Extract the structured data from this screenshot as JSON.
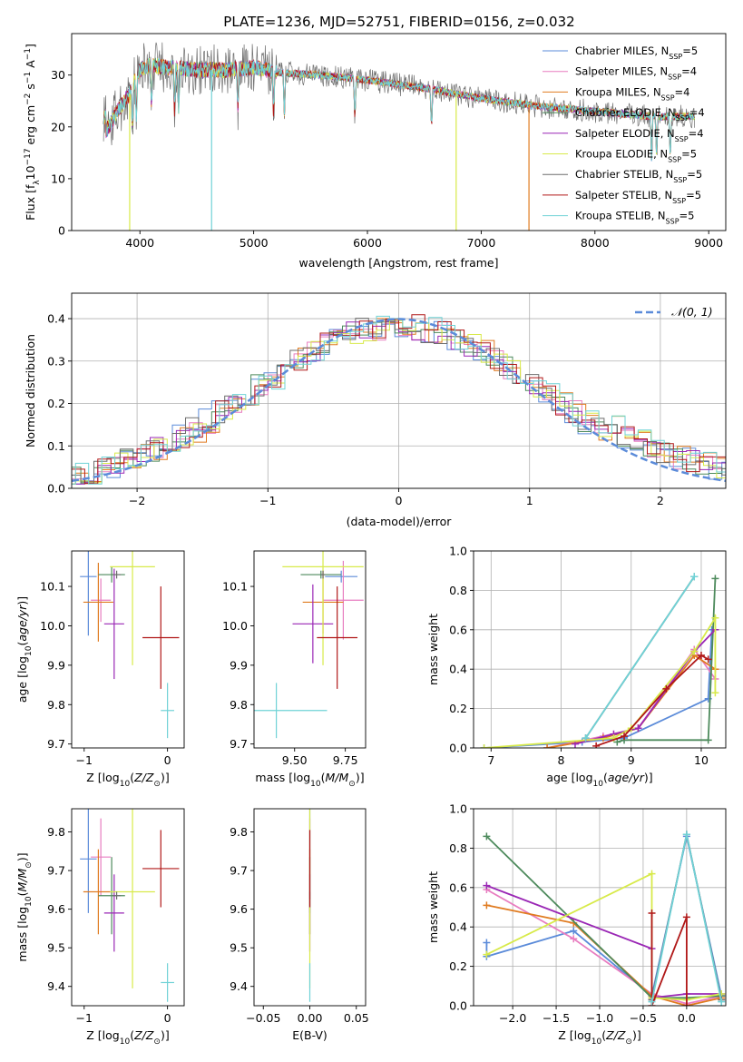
{
  "figure": {
    "title": "PLATE=1236, MJD=52751, FIBERID=0156, z=0.032"
  },
  "colors": {
    "Chabrier MILES": "#5b8bd9",
    "Salpeter MILES": "#e87dc0",
    "Kroupa MILES": "#e07b20",
    "Chabrier ELODIE": "#4d8a5c",
    "Salpeter ELODIE": "#9a27b5",
    "Kroupa ELODIE": "#d8ea4a",
    "Chabrier STELIB": "#6e6e6e",
    "Salpeter STELIB": "#b01818",
    "Kroupa STELIB": "#6fd2d6"
  },
  "chart_data": [
    {
      "id": "spectrum",
      "type": "line",
      "xlabel": "wavelength [Angstrom, rest frame]",
      "ylabel": "Flux [f",
      "ylabel_parts": [
        "Flux [f",
        "λ",
        "10",
        "−17",
        " erg cm",
        "−2",
        " s",
        "−1",
        " A",
        "−1",
        "]"
      ],
      "xlim": [
        3400,
        9150
      ],
      "ylim": [
        0,
        38
      ],
      "xticks": [
        4000,
        5000,
        6000,
        7000,
        8000,
        9000
      ],
      "yticks": [
        0,
        10,
        20,
        30
      ],
      "legend_position": "top-right",
      "legend": [
        {
          "name": "Chabrier MILES",
          "nssp": "5"
        },
        {
          "name": "Salpeter MILES",
          "nssp": "4"
        },
        {
          "name": "Kroupa MILES",
          "nssp": "4"
        },
        {
          "name": "Chabrier ELODIE",
          "nssp": "4"
        },
        {
          "name": "Salpeter ELODIE",
          "nssp": "4"
        },
        {
          "name": "Kroupa ELODIE",
          "nssp": "5"
        },
        {
          "name": "Chabrier STELIB",
          "nssp": "5"
        },
        {
          "name": "Salpeter STELIB",
          "nssp": "5"
        },
        {
          "name": "Kroupa STELIB",
          "nssp": "5"
        }
      ],
      "continuum": [
        [
          3700,
          19
        ],
        [
          3800,
          23
        ],
        [
          3900,
          26
        ],
        [
          4000,
          31
        ],
        [
          4100,
          32
        ],
        [
          4200,
          31.5
        ],
        [
          4500,
          31
        ],
        [
          4800,
          31
        ],
        [
          5000,
          31.5
        ],
        [
          5200,
          30.5
        ],
        [
          5600,
          30
        ],
        [
          6000,
          29
        ],
        [
          6500,
          27.5
        ],
        [
          7000,
          25.5
        ],
        [
          7500,
          24
        ],
        [
          8000,
          23
        ],
        [
          8500,
          22
        ],
        [
          8880,
          22
        ]
      ],
      "x_start": 3680,
      "x_end": 8880,
      "drops": [
        {
          "series": "Kroupa ELODIE",
          "x": 3910,
          "y": 0
        },
        {
          "series": "Kroupa STELIB",
          "x": 4630,
          "y": 0
        },
        {
          "series": "Kroupa ELODIE",
          "x": 6780,
          "y": 0
        },
        {
          "series": "Kroupa MILES",
          "x": 7420,
          "y": 0
        }
      ]
    },
    {
      "id": "residuals",
      "type": "histogram",
      "xlabel": "(data-model)/error",
      "ylabel": "Normed distribution",
      "xlim": [
        -2.5,
        2.5
      ],
      "ylim": [
        0,
        0.46
      ],
      "xticks": [
        -2,
        -1,
        0,
        1,
        2
      ],
      "yticks": [
        0.0,
        0.1,
        0.2,
        0.3,
        0.4
      ],
      "grid": true,
      "legend_position": "top-right",
      "reference_curve": {
        "name": "𝒩(0, 1)",
        "mean": 0,
        "sigma": 1,
        "color": "#5b8bd9"
      },
      "bin_width": 0.1
    },
    {
      "id": "age-vs-Z",
      "type": "scatter",
      "xlabel": "Z [log10(Z/Z⊙)]",
      "ylabel": "age [log10(age/yr)]",
      "xlim": [
        -1.15,
        0.2
      ],
      "ylim": [
        9.69,
        10.19
      ],
      "xticks": [
        -1,
        0
      ],
      "yticks": [
        9.7,
        9.8,
        9.9,
        10.0,
        10.1
      ],
      "points": [
        {
          "series": "Chabrier MILES",
          "x": -0.95,
          "xerr": 0.1,
          "y": 10.125,
          "yerr": 0.15
        },
        {
          "series": "Salpeter MILES",
          "x": -0.8,
          "xerr": 0.12,
          "y": 10.065,
          "yerr": 0.055
        },
        {
          "series": "Kroupa MILES",
          "x": -0.83,
          "xerr": 0.18,
          "y": 10.06,
          "yerr": 0.1
        },
        {
          "series": "Chabrier ELODIE",
          "x": -0.67,
          "xerr": 0.16,
          "y": 10.13,
          "yerr": 0.02
        },
        {
          "series": "Salpeter ELODIE",
          "x": -0.64,
          "xerr": 0.12,
          "y": 10.005,
          "yerr": 0.14
        },
        {
          "series": "Kroupa ELODIE",
          "x": -0.42,
          "xerr": 0.27,
          "y": 10.15,
          "yerr": 0.25
        },
        {
          "series": "Chabrier STELIB",
          "x": -0.61,
          "xerr": 0.05,
          "y": 10.13,
          "yerr": 0.01
        },
        {
          "series": "Salpeter STELIB",
          "x": -0.08,
          "xerr": 0.22,
          "y": 9.97,
          "yerr": 0.13
        },
        {
          "series": "Kroupa STELIB",
          "x": 0.0,
          "xerr": 0.08,
          "y": 9.785,
          "yerr": 0.07
        }
      ]
    },
    {
      "id": "age-vs-mass",
      "type": "scatter",
      "xlabel": "mass [log10(M/M⊙)]",
      "ylabel": "",
      "xlim": [
        9.3,
        9.85
      ],
      "ylim": [
        9.69,
        10.19
      ],
      "xticks": [
        9.5,
        9.75
      ],
      "yticks": [
        9.7,
        9.8,
        9.9,
        10.0,
        10.1
      ],
      "points": [
        {
          "series": "Chabrier MILES",
          "x": 9.73,
          "xerr": 0.08,
          "y": 10.125,
          "yerr": 0.015
        },
        {
          "series": "Salpeter MILES",
          "x": 9.74,
          "xerr": 0.1,
          "y": 10.065,
          "yerr": 0.1
        },
        {
          "series": "Kroupa MILES",
          "x": 9.64,
          "xerr": 0.1,
          "y": 10.06,
          "yerr": 0.08
        },
        {
          "series": "Chabrier ELODIE",
          "x": 9.63,
          "xerr": 0.1,
          "y": 10.13,
          "yerr": 0.01
        },
        {
          "series": "Salpeter ELODIE",
          "x": 9.59,
          "xerr": 0.1,
          "y": 10.005,
          "yerr": 0.1
        },
        {
          "series": "Kroupa ELODIE",
          "x": 9.64,
          "xerr": 0.2,
          "y": 10.15,
          "yerr": 0.25
        },
        {
          "series": "Chabrier STELIB",
          "x": 9.64,
          "xerr": 0.01,
          "y": 10.13,
          "yerr": 0.01
        },
        {
          "series": "Salpeter STELIB",
          "x": 9.71,
          "xerr": 0.1,
          "y": 9.97,
          "yerr": 0.13
        },
        {
          "series": "Kroupa STELIB",
          "x": 9.41,
          "xerr": 0.25,
          "y": 9.785,
          "yerr": 0.07
        }
      ]
    },
    {
      "id": "weight-vs-age",
      "type": "line",
      "xlabel": "age [log10(age/yr)]",
      "ylabel": "mass weight",
      "xlim": [
        6.75,
        10.35
      ],
      "ylim": [
        0,
        1.0
      ],
      "xticks": [
        7,
        8,
        9,
        10
      ],
      "yticks": [
        0.0,
        0.2,
        0.4,
        0.6,
        0.8,
        1.0
      ],
      "grid": true,
      "series": [
        {
          "name": "Chabrier MILES",
          "points": [
            [
              6.9,
              0
            ],
            [
              8.3,
              0.03
            ],
            [
              8.9,
              0.05
            ],
            [
              10.1,
              0.25
            ],
            [
              10.15,
              0.6
            ]
          ]
        },
        {
          "name": "Salpeter MILES",
          "points": [
            [
              7.8,
              0.0
            ],
            [
              8.6,
              0.06
            ],
            [
              9.1,
              0.1
            ],
            [
              9.9,
              0.5
            ],
            [
              10.2,
              0.35
            ]
          ]
        },
        {
          "name": "Kroupa MILES",
          "points": [
            [
              7.8,
              0.0
            ],
            [
              8.6,
              0.05
            ],
            [
              9.1,
              0.1
            ],
            [
              9.9,
              0.47
            ],
            [
              10.2,
              0.4
            ]
          ]
        },
        {
          "name": "Chabrier ELODIE",
          "points": [
            [
              8.8,
              0.03
            ],
            [
              8.9,
              0.04
            ],
            [
              10.1,
              0.04
            ],
            [
              10.2,
              0.86
            ]
          ]
        },
        {
          "name": "Salpeter ELODIE",
          "points": [
            [
              8.2,
              0.02
            ],
            [
              8.75,
              0.07
            ],
            [
              9.1,
              0.1
            ],
            [
              9.9,
              0.49
            ],
            [
              10.2,
              0.6
            ]
          ]
        },
        {
          "name": "Kroupa ELODIE",
          "points": [
            [
              6.9,
              0.0
            ],
            [
              8.75,
              0.05
            ],
            [
              9.0,
              0.1
            ],
            [
              9.9,
              0.49
            ],
            [
              10.2,
              0.66
            ],
            [
              10.2,
              0.28
            ]
          ]
        },
        {
          "name": "Chabrier STELIB",
          "points": [
            [
              8.35,
              0.05
            ],
            [
              9.9,
              0.87
            ]
          ]
        },
        {
          "name": "Salpeter STELIB",
          "points": [
            [
              8.5,
              0.01
            ],
            [
              8.9,
              0.06
            ],
            [
              9.5,
              0.3
            ],
            [
              10.0,
              0.47
            ],
            [
              10.1,
              0.45
            ]
          ]
        },
        {
          "name": "Kroupa STELIB",
          "points": [
            [
              8.35,
              0.05
            ],
            [
              9.9,
              0.87
            ]
          ]
        }
      ]
    },
    {
      "id": "mass-vs-Z",
      "type": "scatter",
      "xlabel": "Z [log10(Z/Z⊙)]",
      "ylabel": "mass [log10(M/M⊙)]",
      "xlim": [
        -1.15,
        0.2
      ],
      "ylim": [
        9.35,
        9.86
      ],
      "xticks": [
        -1,
        0
      ],
      "yticks": [
        9.4,
        9.5,
        9.6,
        9.7,
        9.8
      ],
      "points": [
        {
          "series": "Chabrier MILES",
          "x": -0.95,
          "xerr": 0.1,
          "y": 9.73,
          "yerr": 0.14
        },
        {
          "series": "Salpeter MILES",
          "x": -0.8,
          "xerr": 0.12,
          "y": 9.735,
          "yerr": 0.1
        },
        {
          "series": "Kroupa MILES",
          "x": -0.83,
          "xerr": 0.18,
          "y": 9.645,
          "yerr": 0.11
        },
        {
          "series": "Chabrier ELODIE",
          "x": -0.67,
          "xerr": 0.16,
          "y": 9.635,
          "yerr": 0.1
        },
        {
          "series": "Salpeter ELODIE",
          "x": -0.64,
          "xerr": 0.12,
          "y": 9.59,
          "yerr": 0.1
        },
        {
          "series": "Kroupa ELODIE",
          "x": -0.42,
          "xerr": 0.27,
          "y": 9.645,
          "yerr": 0.25
        },
        {
          "series": "Chabrier STELIB",
          "x": -0.61,
          "xerr": 0.05,
          "y": 9.635,
          "yerr": 0.01
        },
        {
          "series": "Salpeter STELIB",
          "x": -0.08,
          "xerr": 0.22,
          "y": 9.705,
          "yerr": 0.1
        },
        {
          "series": "Kroupa STELIB",
          "x": 0.0,
          "xerr": 0.08,
          "y": 9.41,
          "yerr": 0.05
        }
      ]
    },
    {
      "id": "mass-vs-ebv",
      "type": "scatter",
      "xlabel": "E(B-V)",
      "ylabel": "",
      "xlim": [
        -0.06,
        0.06
      ],
      "ylim": [
        9.35,
        9.86
      ],
      "xticks": [
        -0.05,
        0.0,
        0.05
      ],
      "yticks": [
        9.4,
        9.5,
        9.6,
        9.7,
        9.8
      ],
      "points": [
        {
          "series": "Chabrier MILES",
          "x": 0,
          "xerr": 0,
          "y": 9.73,
          "yerr": 0.14
        },
        {
          "series": "Salpeter MILES",
          "x": 0,
          "xerr": 0,
          "y": 9.735,
          "yerr": 0.1
        },
        {
          "series": "Kroupa MILES",
          "x": 0,
          "xerr": 0,
          "y": 9.645,
          "yerr": 0.11
        },
        {
          "series": "Chabrier ELODIE",
          "x": 0,
          "xerr": 0,
          "y": 9.635,
          "yerr": 0.1
        },
        {
          "series": "Salpeter ELODIE",
          "x": 0,
          "xerr": 0,
          "y": 9.59,
          "yerr": 0.1
        },
        {
          "series": "Kroupa ELODIE",
          "x": 0,
          "xerr": 0,
          "y": 9.645,
          "yerr": 0.25
        },
        {
          "series": "Chabrier STELIB",
          "x": 0,
          "xerr": 0,
          "y": 9.635,
          "yerr": 0.01
        },
        {
          "series": "Salpeter STELIB",
          "x": 0,
          "xerr": 0,
          "y": 9.705,
          "yerr": 0.1
        },
        {
          "series": "Kroupa STELIB",
          "x": 0,
          "xerr": 0,
          "y": 9.41,
          "yerr": 0.05
        }
      ]
    },
    {
      "id": "weight-vs-Z",
      "type": "line",
      "xlabel": "Z [log10(Z/Z⊙)]",
      "ylabel": "mass weight",
      "xlim": [
        -2.45,
        0.45
      ],
      "ylim": [
        0,
        1.0
      ],
      "xticks": [
        -2.0,
        -1.5,
        -1.0,
        -0.5,
        0.0
      ],
      "yticks": [
        0.0,
        0.2,
        0.4,
        0.6,
        0.8,
        1.0
      ],
      "grid": true,
      "series": [
        {
          "name": "Chabrier MILES",
          "points": [
            [
              -2.3,
              0.32
            ],
            [
              -2.3,
              0.25
            ],
            [
              -1.3,
              0.38
            ],
            [
              -0.4,
              0.05
            ],
            [
              0.0,
              0.86
            ],
            [
              0.4,
              0.05
            ]
          ]
        },
        {
          "name": "Salpeter MILES",
          "points": [
            [
              -2.3,
              0.59
            ],
            [
              -1.3,
              0.34
            ],
            [
              -0.4,
              0.06
            ],
            [
              0.0,
              0.01
            ],
            [
              0.4,
              0.05
            ]
          ]
        },
        {
          "name": "Kroupa MILES",
          "points": [
            [
              -2.3,
              0.51
            ],
            [
              -1.3,
              0.42
            ],
            [
              -0.4,
              0.05
            ],
            [
              0.0,
              0.0
            ],
            [
              0.4,
              0.04
            ]
          ]
        },
        {
          "name": "Chabrier ELODIE",
          "points": [
            [
              -2.3,
              0.86
            ],
            [
              -0.4,
              0.04
            ],
            [
              0.0,
              0.04
            ],
            [
              0.4,
              0.05
            ]
          ]
        },
        {
          "name": "Salpeter ELODIE",
          "points": [
            [
              -2.3,
              0.61
            ],
            [
              -0.4,
              0.29
            ],
            [
              -0.4,
              0.04
            ],
            [
              0.0,
              0.06
            ],
            [
              0.4,
              0.06
            ]
          ]
        },
        {
          "name": "Kroupa ELODIE",
          "points": [
            [
              -2.3,
              0.26
            ],
            [
              -0.4,
              0.67
            ],
            [
              -0.4,
              0.04
            ],
            [
              0.0,
              0.03
            ],
            [
              0.4,
              0.06
            ]
          ]
        },
        {
          "name": "Chabrier STELIB",
          "points": [
            [
              -0.4,
              0.03
            ],
            [
              0.0,
              0.87
            ],
            [
              0.4,
              0.03
            ]
          ]
        },
        {
          "name": "Salpeter STELIB",
          "points": [
            [
              -0.4,
              0.47
            ],
            [
              -0.4,
              0.0
            ],
            [
              0.0,
              0.45
            ],
            [
              0.0,
              0.0
            ]
          ]
        },
        {
          "name": "Kroupa STELIB",
          "points": [
            [
              -0.4,
              0.02
            ],
            [
              0.0,
              0.87
            ],
            [
              0.4,
              0.02
            ]
          ]
        }
      ]
    }
  ]
}
